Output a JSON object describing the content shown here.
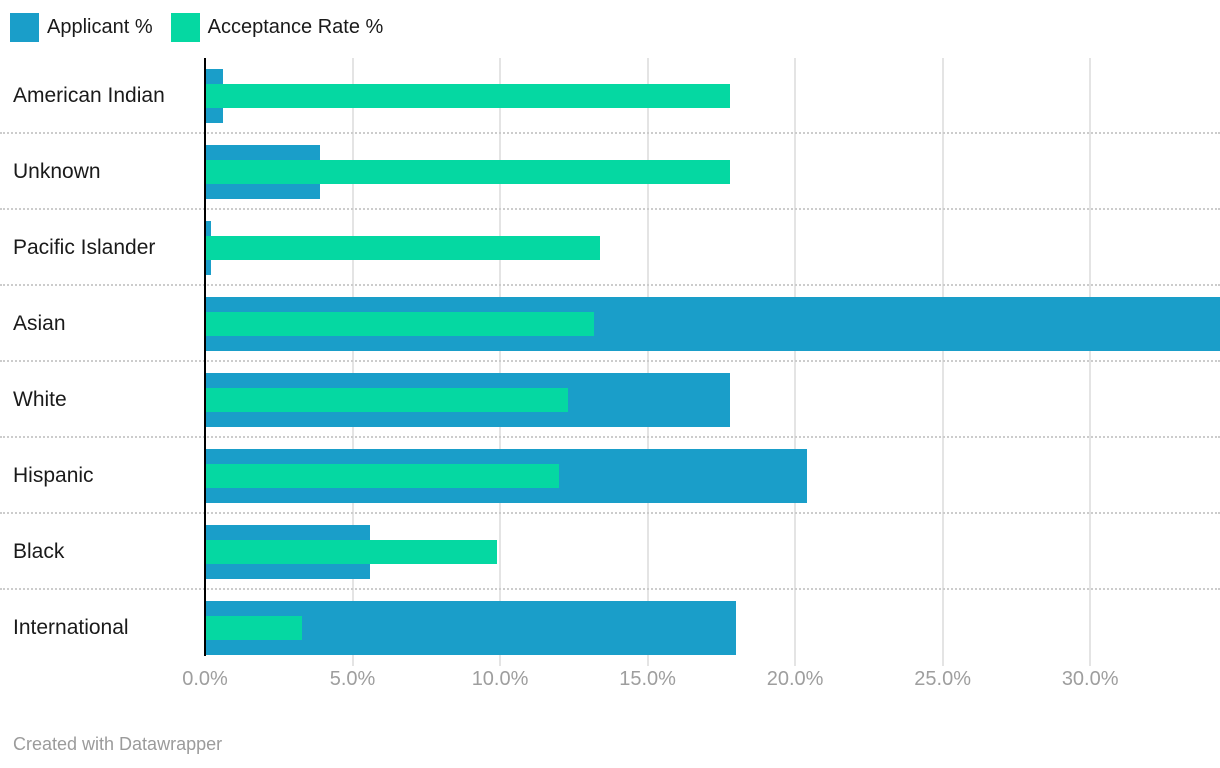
{
  "legend": {
    "items": [
      {
        "label": "Applicant %",
        "color": "#1a9ec9"
      },
      {
        "label": "Acceptance Rate %",
        "color": "#05d8a2"
      }
    ]
  },
  "chart_data": {
    "type": "bar",
    "orientation": "horizontal",
    "title": "",
    "categories": [
      "American Indian",
      "Unknown",
      "Pacific Islander",
      "Asian",
      "White",
      "Hispanic",
      "Black",
      "International"
    ],
    "series": [
      {
        "name": "Applicant %",
        "color": "#1a9ec9",
        "values": [
          0.6,
          3.9,
          0.2,
          34.5,
          17.8,
          20.4,
          5.6,
          18.0
        ]
      },
      {
        "name": "Acceptance Rate %",
        "color": "#05d8a2",
        "values": [
          17.8,
          17.8,
          13.4,
          13.2,
          12.3,
          12.0,
          9.9,
          3.3
        ]
      }
    ],
    "x_ticks": [
      {
        "value": 0,
        "label": "0.0%"
      },
      {
        "value": 5,
        "label": "5.0%"
      },
      {
        "value": 10,
        "label": "10.0%"
      },
      {
        "value": 15,
        "label": "15.0%"
      },
      {
        "value": 20,
        "label": "20.0%"
      },
      {
        "value": 25,
        "label": "25.0%"
      },
      {
        "value": 30,
        "label": "30.0%"
      }
    ],
    "xlim": [
      0,
      34.4
    ],
    "grid": "vertical",
    "legend_position": "top-left",
    "row_separators": "dotted"
  },
  "footer": {
    "credit": "Created with Datawrapper"
  }
}
